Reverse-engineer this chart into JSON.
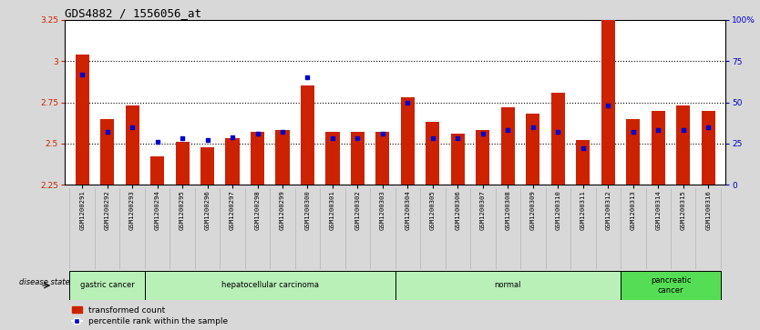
{
  "title": "GDS4882 / 1556056_at",
  "samples": [
    "GSM1200291",
    "GSM1200292",
    "GSM1200293",
    "GSM1200294",
    "GSM1200295",
    "GSM1200296",
    "GSM1200297",
    "GSM1200298",
    "GSM1200299",
    "GSM1200300",
    "GSM1200301",
    "GSM1200302",
    "GSM1200303",
    "GSM1200304",
    "GSM1200305",
    "GSM1200306",
    "GSM1200307",
    "GSM1200308",
    "GSM1200309",
    "GSM1200310",
    "GSM1200311",
    "GSM1200312",
    "GSM1200313",
    "GSM1200314",
    "GSM1200315",
    "GSM1200316"
  ],
  "transformed_count": [
    3.04,
    2.65,
    2.73,
    2.42,
    2.51,
    2.48,
    2.53,
    2.57,
    2.58,
    2.85,
    2.57,
    2.57,
    2.57,
    2.78,
    2.63,
    2.56,
    2.58,
    2.72,
    2.68,
    2.81,
    2.52,
    3.25,
    2.65,
    2.7,
    2.73,
    2.7
  ],
  "percentile_rank": [
    67,
    32,
    35,
    26,
    28,
    27,
    29,
    31,
    32,
    65,
    28,
    28,
    31,
    50,
    28,
    28,
    31,
    33,
    35,
    32,
    22,
    48,
    32,
    33,
    33,
    35
  ],
  "group_configs": [
    {
      "label": "gastric cancer",
      "start": 0,
      "end": 2,
      "color": "#b8f0b8",
      "dark": false
    },
    {
      "label": "hepatocellular carcinoma",
      "start": 3,
      "end": 12,
      "color": "#b8f0b8",
      "dark": false
    },
    {
      "label": "normal",
      "start": 13,
      "end": 21,
      "color": "#b8f0b8",
      "dark": false
    },
    {
      "label": "pancreatic\ncancer",
      "start": 22,
      "end": 25,
      "color": "#55dd55",
      "dark": true
    }
  ],
  "ylim_left": [
    2.25,
    3.25
  ],
  "ylim_right": [
    0,
    100
  ],
  "bar_color": "#cc2200",
  "percentile_color": "#0000cc",
  "bg_color": "#d8d8d8",
  "plot_bg_color": "#ffffff",
  "tick_label_bg": "#d0d0d0",
  "title_fontsize": 9,
  "tick_fontsize": 6.5,
  "label_fontsize": 6.0
}
